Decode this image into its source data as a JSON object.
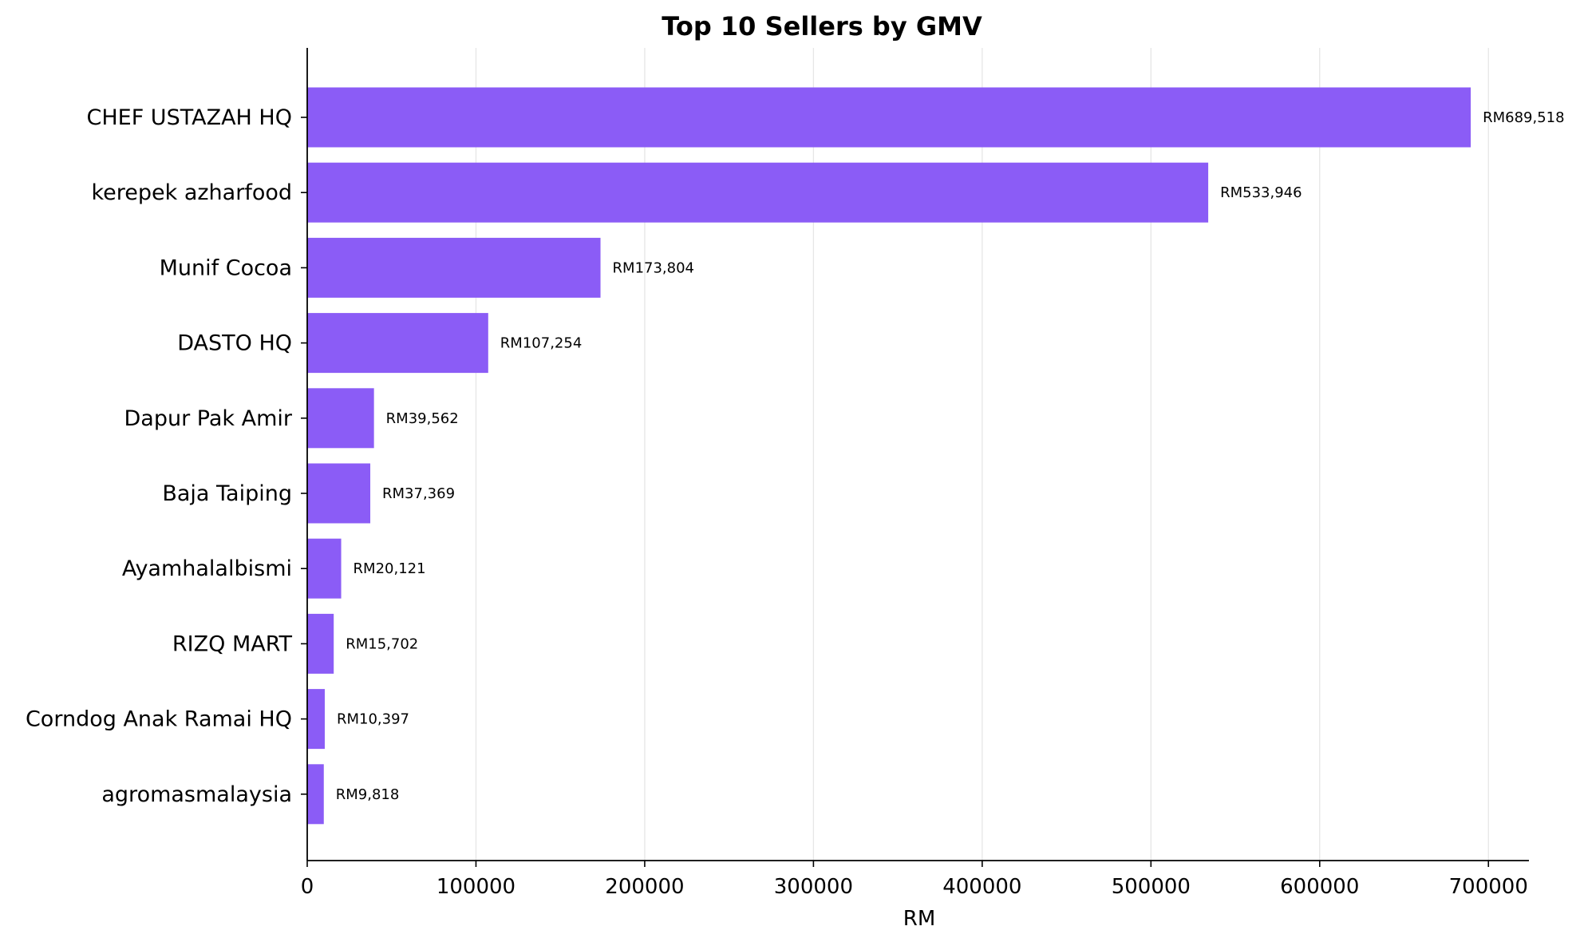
{
  "chart_data": {
    "type": "bar",
    "orientation": "horizontal",
    "title": "Top 10 Sellers by GMV",
    "xlabel": "RM",
    "ylabel": "",
    "categories": [
      "CHEF USTAZAH HQ",
      "kerepek azharfood",
      "Munif Cocoa",
      "DASTO HQ",
      "Dapur Pak Amir",
      "Baja Taiping",
      "Ayamhalalbismi",
      "RIZQ MART",
      "Corndog Anak Ramai HQ",
      "agromasmalaysia"
    ],
    "values": [
      689518,
      533946,
      173804,
      107254,
      39562,
      37369,
      20121,
      15702,
      10397,
      9818
    ],
    "data_labels": [
      "RM689,518",
      "RM533,946",
      "RM173,804",
      "RM107,254",
      "RM39,562",
      "RM37,369",
      "RM20,121",
      "RM15,702",
      "RM10,397",
      "RM9,818"
    ],
    "xlim": [
      0,
      724000
    ],
    "xticks": [
      0,
      100000,
      200000,
      300000,
      400000,
      500000,
      600000,
      700000
    ],
    "xtick_labels": [
      "0",
      "100000",
      "200000",
      "300000",
      "400000",
      "500000",
      "600000",
      "700000"
    ],
    "grid": "vertical",
    "bar_color": "#8b5cf6"
  }
}
